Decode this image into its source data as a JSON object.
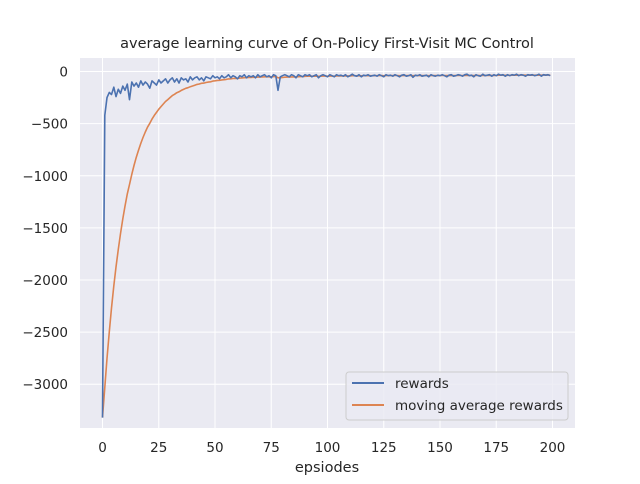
{
  "chart_data": {
    "type": "line",
    "title": "average learning curve of On-Policy First-Visit MC Control",
    "xlabel": "epsiodes",
    "ylabel": "",
    "xlim": [
      -10,
      210
    ],
    "ylim": [
      -3420,
      130
    ],
    "xticks": [
      0,
      25,
      50,
      75,
      100,
      125,
      150,
      175,
      200
    ],
    "yticks": [
      0,
      -500,
      -1000,
      -1500,
      -2000,
      -2500,
      -3000
    ],
    "grid": true,
    "legend_position": "lower-right",
    "series": [
      {
        "name": "rewards",
        "color": "#4c72b0",
        "values": [
          -3320,
          -420,
          -250,
          -200,
          -220,
          -150,
          -240,
          -170,
          -210,
          -140,
          -180,
          -120,
          -270,
          -100,
          -140,
          -110,
          -150,
          -90,
          -130,
          -100,
          -120,
          -160,
          -90,
          -110,
          -130,
          -80,
          -110,
          -90,
          -70,
          -110,
          -80,
          -60,
          -100,
          -70,
          -110,
          -60,
          -80,
          -70,
          -100,
          -50,
          -80,
          -60,
          -50,
          -80,
          -60,
          -90,
          -50,
          -60,
          -70,
          -40,
          -60,
          -50,
          -70,
          -40,
          -60,
          -50,
          -30,
          -60,
          -40,
          -50,
          -70,
          -40,
          -50,
          -30,
          -60,
          -40,
          -50,
          -40,
          -60,
          -30,
          -50,
          -40,
          -30,
          -50,
          -40,
          -60,
          -30,
          -40,
          -180,
          -50,
          -40,
          -30,
          -40,
          -50,
          -30,
          -40,
          -60,
          -30,
          -40,
          -50,
          -30,
          -40,
          -30,
          -50,
          -40,
          -30,
          -60,
          -40,
          -30,
          -40,
          -50,
          -30,
          -40,
          -50,
          -30,
          -40,
          -35,
          -45,
          -30,
          -50,
          -40,
          -25,
          -40,
          -45,
          -30,
          -50,
          -35,
          -40,
          -30,
          -45,
          -40,
          -35,
          -45,
          -30,
          -40,
          -50,
          -30,
          -40,
          -35,
          -45,
          -30,
          -40,
          -50,
          -35,
          -30,
          -45,
          -40,
          -30,
          -55,
          -35,
          -40,
          -30,
          -45,
          -40,
          -35,
          -50,
          -30,
          -40,
          -45,
          -35,
          -40,
          -30,
          -40,
          -50,
          -35,
          -30,
          -45,
          -40,
          -30,
          -35,
          -45,
          -30,
          -25,
          -40,
          -35,
          -50,
          -30,
          -40,
          -45,
          -25,
          -40,
          -35,
          -30,
          -45,
          -30,
          -40,
          -25,
          -35,
          -30,
          -45,
          -30,
          -40,
          -30,
          -35,
          -25,
          -40,
          -30,
          -35,
          -45,
          -30,
          -35,
          -30,
          -40,
          -35,
          -25,
          -45,
          -30,
          -35,
          -30,
          -40
        ]
      },
      {
        "name": "moving average rewards",
        "color": "#dd8452",
        "values": [
          -3320,
          -3030,
          -2752,
          -2497,
          -2269,
          -2057,
          -1875,
          -1705,
          -1556,
          -1414,
          -1291,
          -1174,
          -1084,
          -986,
          -901,
          -822,
          -755,
          -689,
          -633,
          -580,
          -534,
          -497,
          -456,
          -421,
          -392,
          -361,
          -336,
          -311,
          -287,
          -269,
          -250,
          -231,
          -218,
          -203,
          -194,
          -181,
          -171,
          -161,
          -155,
          -145,
          -139,
          -131,
          -123,
          -119,
          -113,
          -111,
          -105,
          -101,
          -98,
          -92,
          -89,
          -85,
          -84,
          -80,
          -78,
          -75,
          -71,
          -70,
          -67,
          -65,
          -66,
          -63,
          -62,
          -59,
          -59,
          -57,
          -56,
          -54,
          -55,
          -53,
          -53,
          -52,
          -50,
          -50,
          -49,
          -50,
          -48,
          -47,
          -60,
          -59,
          -57,
          -54,
          -53,
          -53,
          -51,
          -50,
          -51,
          -49,
          -48,
          -48,
          -46,
          -45,
          -44,
          -45,
          -45,
          -44,
          -46,
          -45,
          -44,
          -44,
          -45,
          -44,
          -44,
          -45,
          -43,
          -43,
          -42,
          -42,
          -41,
          -42,
          -42,
          -40,
          -40,
          -41,
          -40,
          -41,
          -40,
          -40,
          -39,
          -40,
          -40,
          -39,
          -40,
          -39,
          -39,
          -40,
          -39,
          -39,
          -39,
          -39,
          -38,
          -38,
          -40,
          -39,
          -38,
          -39,
          -39,
          -38,
          -40,
          -39,
          -39,
          -38,
          -39,
          -39,
          -38,
          -40,
          -39,
          -39,
          -39,
          -39,
          -39,
          -38,
          -38,
          -39,
          -39,
          -38,
          -39,
          -39,
          -38,
          -38,
          -39,
          -38,
          -37,
          -37,
          -37,
          -38,
          -37,
          -37,
          -38,
          -37,
          -37,
          -37,
          -36,
          -37,
          -36,
          -37,
          -35,
          -35,
          -35,
          -36,
          -35,
          -36,
          -35,
          -35,
          -34,
          -35,
          -34,
          -34,
          -35,
          -35,
          -35,
          -34,
          -35,
          -35,
          -34,
          -35,
          -34,
          -34,
          -34,
          -35
        ]
      }
    ]
  }
}
